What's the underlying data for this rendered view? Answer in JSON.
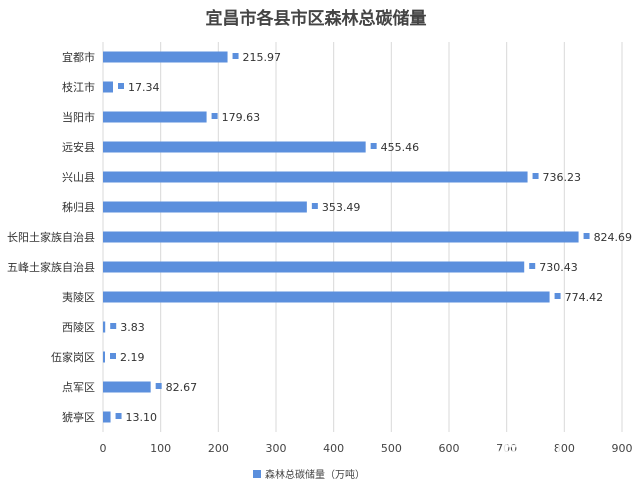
{
  "chart_data": {
    "type": "bar",
    "orientation": "horizontal",
    "title": "宜昌市各县市区森林总碳储量",
    "categories": [
      "宜都市",
      "枝江市",
      "当阳市",
      "远安县",
      "兴山县",
      "秭归县",
      "长阳土家族自治县",
      "五峰土家族自治县",
      "夷陵区",
      "西陵区",
      "伍家岗区",
      "点军区",
      "猇亭区"
    ],
    "series": [
      {
        "name": "森林总碳储量（万吨）",
        "values": [
          215.97,
          17.34,
          179.63,
          455.46,
          736.23,
          353.49,
          824.69,
          730.43,
          774.42,
          3.83,
          2.19,
          82.67,
          13.1
        ],
        "labels": [
          "215.97",
          "17.34",
          "179.63",
          "455.46",
          "736.23",
          "353.49",
          "824.69",
          "730.43",
          "774.42",
          "3.83",
          "2.19",
          "82.67",
          "13.10"
        ]
      }
    ],
    "xlim": [
      0,
      900
    ],
    "xticks": [
      0,
      100,
      200,
      300,
      400,
      500,
      600,
      700,
      800,
      900
    ],
    "grid": true,
    "legend_position": "bottom",
    "colors": {
      "bar": "#5b8fdd",
      "grid": "#d9d9d9"
    }
  },
  "watermark": "長江雲"
}
